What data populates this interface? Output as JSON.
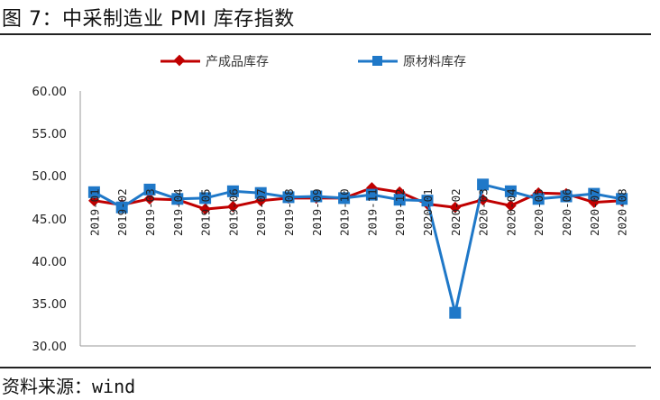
{
  "figure": {
    "title": "图 7：中采制造业 PMI 库存指数",
    "source": "资料来源：wind"
  },
  "colors": {
    "series_1": "#c00000",
    "series_2": "#1f78c8"
  },
  "chart_data": {
    "type": "line",
    "title": "",
    "xlabel": "",
    "ylabel": "",
    "ylim": [
      30,
      60
    ],
    "yticks": [
      "60.00",
      "55.00",
      "50.00",
      "45.00",
      "40.00",
      "35.00",
      "30.00"
    ],
    "grid": false,
    "legend_position": "top",
    "categories": [
      "2019-01",
      "2019-02",
      "2019-03",
      "2019-04",
      "2019-05",
      "2019-06",
      "2019-07",
      "2019-08",
      "2019-09",
      "2019-10",
      "2019-11",
      "2019-12",
      "2020-01",
      "2020-02",
      "2020-03",
      "2020-04",
      "2020-05",
      "2020-06",
      "2020-07",
      "2020-08"
    ],
    "series": [
      {
        "name": "产成品库存",
        "marker": "diamond",
        "values": [
          47.1,
          46.6,
          47.3,
          47.2,
          46.1,
          46.4,
          47.1,
          47.4,
          47.4,
          47.4,
          48.6,
          48.1,
          46.7,
          46.3,
          47.2,
          46.5,
          48.0,
          47.9,
          46.9,
          47.1
        ]
      },
      {
        "name": "原材料库存",
        "marker": "square",
        "values": [
          48.1,
          46.3,
          48.4,
          47.3,
          47.4,
          48.2,
          48.0,
          47.5,
          47.6,
          47.4,
          47.8,
          47.2,
          47.1,
          33.9,
          49.0,
          48.2,
          47.3,
          47.6,
          47.9,
          47.3
        ]
      }
    ]
  }
}
